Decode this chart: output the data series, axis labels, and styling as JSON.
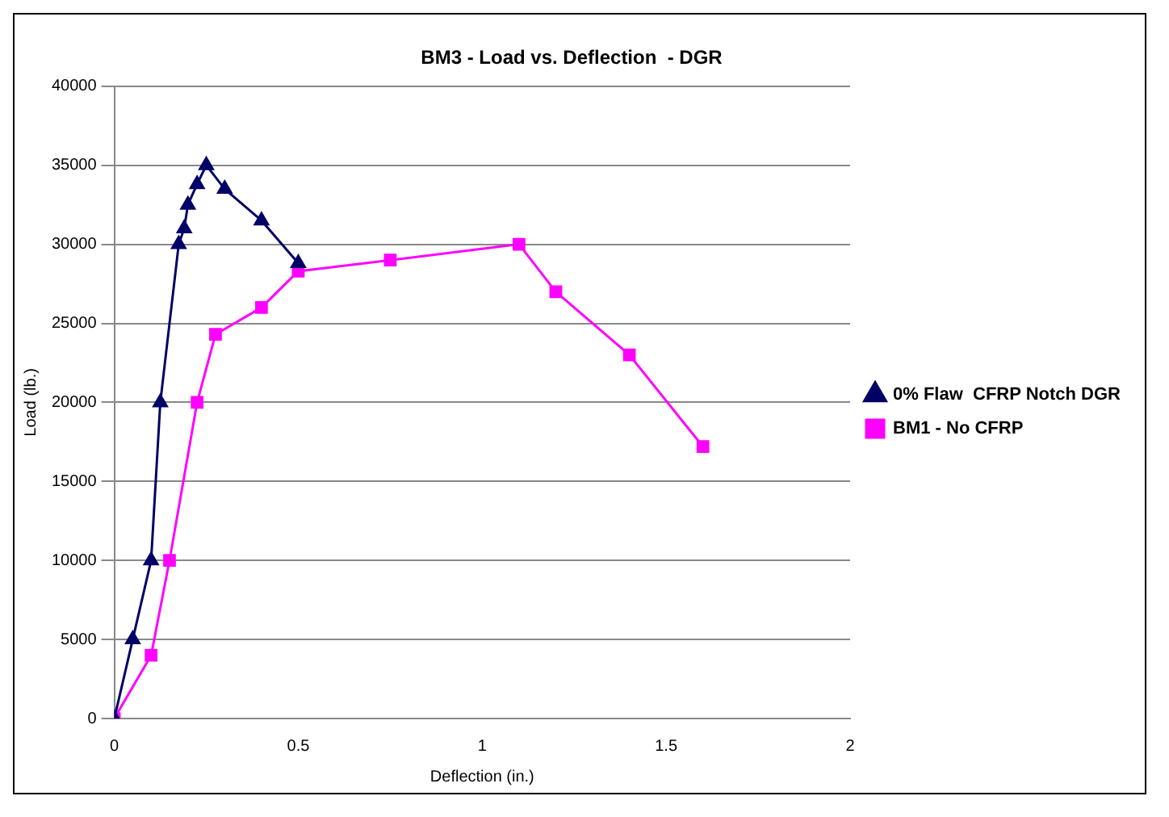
{
  "chart_data": {
    "type": "line",
    "title": "BM3 - Load vs. Deflection  - DGR",
    "xlabel": "Deflection (in.)",
    "ylabel": "Load (lb.)",
    "xlim": [
      0,
      2
    ],
    "xticks": [
      0,
      0.5,
      1,
      1.5,
      2
    ],
    "ylim": [
      0,
      40000
    ],
    "yticks": [
      0,
      5000,
      10000,
      15000,
      20000,
      25000,
      30000,
      35000,
      40000
    ],
    "grid": "y",
    "legend": "right",
    "series": [
      {
        "name": "0% Flaw  CFRP Notch DGR",
        "color": "#000066",
        "marker": "triangle",
        "x": [
          0,
          0.05,
          0.1,
          0.125,
          0.175,
          0.19,
          0.2,
          0.225,
          0.25,
          0.3,
          0.4,
          0.5
        ],
        "values": [
          0,
          5000,
          10000,
          20000,
          30000,
          31000,
          32500,
          33800,
          35000,
          33500,
          31500,
          28800
        ]
      },
      {
        "name": "BM1 - No CFRP",
        "color": "#ff00ff",
        "marker": "square",
        "x": [
          0,
          0.1,
          0.15,
          0.225,
          0.275,
          0.4,
          0.5,
          0.75,
          1.1,
          1.2,
          1.4,
          1.6
        ],
        "values": [
          0,
          4000,
          10000,
          20000,
          24300,
          26000,
          28300,
          29000,
          30000,
          27000,
          23000,
          17200
        ]
      }
    ]
  }
}
